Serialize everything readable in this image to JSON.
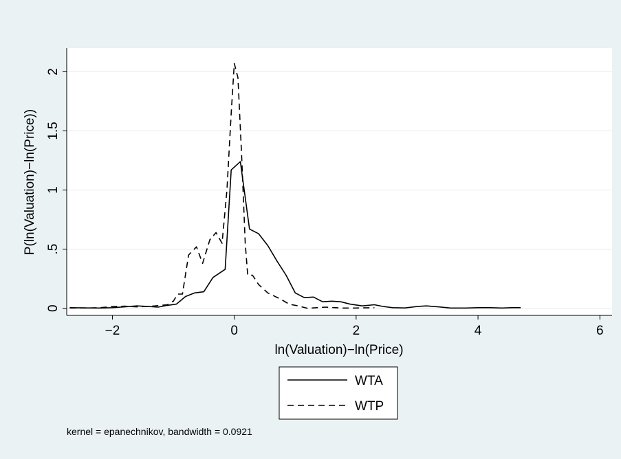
{
  "chart_data": {
    "type": "line",
    "xlabel": "ln(Valuation)−ln(Price)",
    "ylabel": "P(ln(Valuation)−ln(Price))",
    "xlim": [
      -2.75,
      6.2
    ],
    "ylim": [
      -0.06,
      2.2
    ],
    "x_ticks": [
      -2,
      0,
      2,
      4,
      6
    ],
    "x_tick_labels": [
      "−2",
      "0",
      "2",
      "4",
      "6"
    ],
    "y_ticks": [
      0,
      0.5,
      1,
      1.5,
      2
    ],
    "y_tick_labels": [
      "0",
      ".5",
      "1",
      "1.5",
      "2"
    ],
    "grid": true,
    "legend_position": "bottom-center",
    "note": "kernel = epanechnikov, bandwidth = 0.0921",
    "series": [
      {
        "name": "WTA",
        "style": "solid",
        "color": "#000000",
        "points": [
          [
            -2.7,
            0.005
          ],
          [
            -2.4,
            0.003
          ],
          [
            -2.2,
            0.002
          ],
          [
            -2.0,
            0.005
          ],
          [
            -1.8,
            0.012
          ],
          [
            -1.6,
            0.02
          ],
          [
            -1.4,
            0.015
          ],
          [
            -1.25,
            0.01
          ],
          [
            -1.1,
            0.025
          ],
          [
            -0.95,
            0.035
          ],
          [
            -0.8,
            0.1
          ],
          [
            -0.65,
            0.13
          ],
          [
            -0.5,
            0.14
          ],
          [
            -0.35,
            0.26
          ],
          [
            -0.15,
            0.33
          ],
          [
            -0.05,
            1.17
          ],
          [
            0.1,
            1.24
          ],
          [
            0.25,
            0.67
          ],
          [
            0.4,
            0.63
          ],
          [
            0.55,
            0.53
          ],
          [
            0.7,
            0.4
          ],
          [
            0.85,
            0.28
          ],
          [
            1.0,
            0.13
          ],
          [
            1.15,
            0.09
          ],
          [
            1.3,
            0.095
          ],
          [
            1.45,
            0.055
          ],
          [
            1.6,
            0.06
          ],
          [
            1.75,
            0.055
          ],
          [
            1.9,
            0.035
          ],
          [
            2.1,
            0.02
          ],
          [
            2.3,
            0.03
          ],
          [
            2.45,
            0.015
          ],
          [
            2.6,
            0.005
          ],
          [
            2.8,
            0.003
          ],
          [
            3.0,
            0.015
          ],
          [
            3.15,
            0.02
          ],
          [
            3.35,
            0.012
          ],
          [
            3.55,
            0.002
          ],
          [
            3.8,
            0.002
          ],
          [
            4.0,
            0.005
          ],
          [
            4.2,
            0.005
          ],
          [
            4.4,
            0.002
          ],
          [
            4.55,
            0.005
          ],
          [
            4.7,
            0.005
          ]
        ]
      },
      {
        "name": "WTP",
        "style": "dashed",
        "color": "#000000",
        "points": [
          [
            -2.7,
            0.003
          ],
          [
            -2.4,
            0.003
          ],
          [
            -2.2,
            0.005
          ],
          [
            -2.0,
            0.015
          ],
          [
            -1.8,
            0.018
          ],
          [
            -1.6,
            0.012
          ],
          [
            -1.45,
            0.015
          ],
          [
            -1.3,
            0.02
          ],
          [
            -1.1,
            0.03
          ],
          [
            -1.0,
            0.06
          ],
          [
            -0.93,
            0.12
          ],
          [
            -0.85,
            0.12
          ],
          [
            -0.75,
            0.45
          ],
          [
            -0.62,
            0.52
          ],
          [
            -0.52,
            0.38
          ],
          [
            -0.4,
            0.58
          ],
          [
            -0.3,
            0.64
          ],
          [
            -0.2,
            0.55
          ],
          [
            -0.12,
            1.0
          ],
          [
            -0.05,
            1.65
          ],
          [
            0.0,
            2.07
          ],
          [
            0.06,
            1.95
          ],
          [
            0.12,
            1.3
          ],
          [
            0.18,
            0.55
          ],
          [
            0.22,
            0.28
          ],
          [
            0.3,
            0.28
          ],
          [
            0.4,
            0.2
          ],
          [
            0.55,
            0.13
          ],
          [
            0.75,
            0.08
          ],
          [
            0.9,
            0.035
          ],
          [
            1.05,
            0.02
          ],
          [
            1.2,
            0.0
          ],
          [
            1.5,
            0.01
          ],
          [
            1.75,
            0.002
          ],
          [
            2.0,
            0.002
          ],
          [
            2.3,
            0.005
          ]
        ]
      }
    ]
  }
}
